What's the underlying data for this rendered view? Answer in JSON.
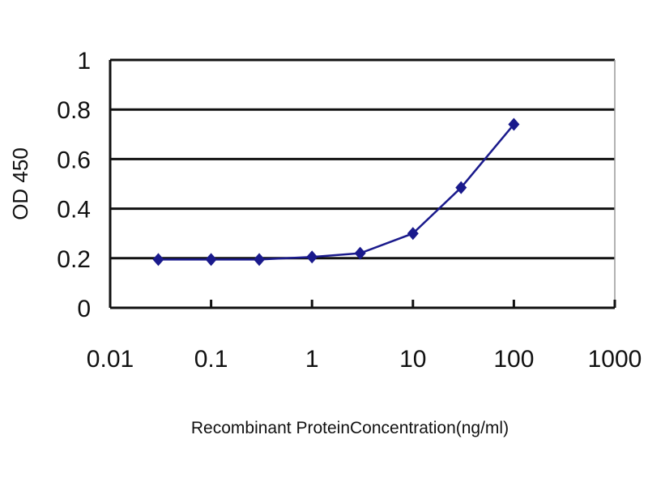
{
  "chart_data": {
    "type": "line",
    "title": "",
    "xlabel": "Recombinant ProteinConcentration(ng/ml)",
    "ylabel": "OD 450",
    "x_scale": "log",
    "xlim": [
      0.01,
      1000
    ],
    "ylim": [
      0,
      1
    ],
    "x_ticks": [
      "0.01",
      "0.1",
      "1",
      "10",
      "100",
      "1000"
    ],
    "y_ticks": [
      "0",
      "0.2",
      "0.4",
      "0.6",
      "0.8",
      "1"
    ],
    "grid": "horizontal",
    "legend": "none",
    "series": [
      {
        "x": [
          0.03,
          0.1,
          0.3,
          1,
          3,
          10,
          30,
          100
        ],
        "y": [
          0.195,
          0.195,
          0.195,
          0.205,
          0.22,
          0.3,
          0.485,
          0.74
        ],
        "color": "#1a1a8c",
        "marker": "diamond"
      }
    ]
  }
}
